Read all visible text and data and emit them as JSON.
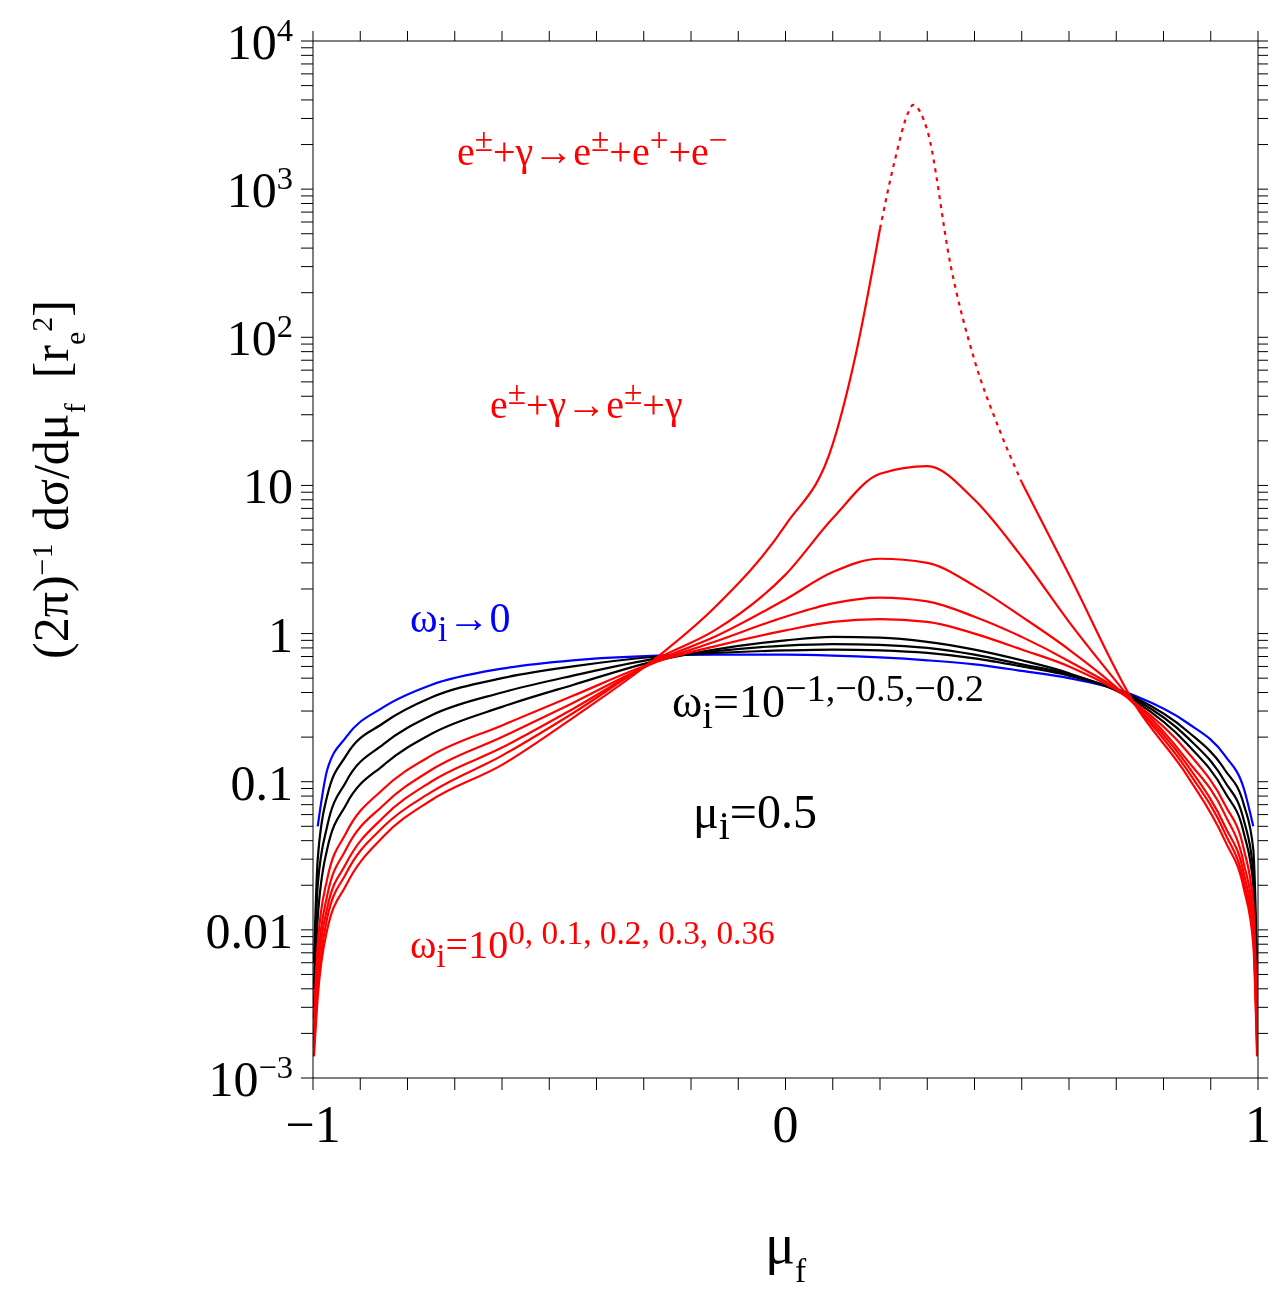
{
  "chart_data": {
    "type": "line",
    "xlabel": "μ$_{f}$",
    "ylabel": "(2π)$^{−1}$ dσ/dμ$_{f}$  [r$_{e}$$^{2}$]",
    "x": [
      -0.998,
      -0.99,
      -0.97,
      -0.93,
      -0.85,
      -0.75,
      -0.6,
      -0.45,
      -0.27,
      -0.15,
      0,
      0.1,
      0.2,
      0.3,
      0.4,
      0.5,
      0.6,
      0.74,
      0.85,
      0.93,
      0.97,
      0.99,
      0.998
    ],
    "series": [
      {
        "color": "#0000ff",
        "values": [
          null,
          0.05,
          0.12,
          0.2,
          0.32,
          0.45,
          0.58,
          0.66,
          0.71,
          0.72,
          0.72,
          0.71,
          0.69,
          0.66,
          0.62,
          0.56,
          0.5,
          0.38,
          0.25,
          0.15,
          0.09,
          0.05,
          null
        ]
      },
      {
        "color": "#000000",
        "values": [
          0.006,
          0.03,
          0.08,
          0.15,
          0.25,
          0.37,
          0.5,
          0.6,
          0.7,
          0.74,
          0.77,
          0.78,
          0.77,
          0.74,
          0.68,
          0.6,
          0.52,
          0.37,
          0.22,
          0.12,
          0.07,
          0.035,
          0.006
        ]
      },
      {
        "color": "#000000",
        "values": [
          0.004,
          0.02,
          0.05,
          0.1,
          0.18,
          0.28,
          0.4,
          0.52,
          0.68,
          0.76,
          0.83,
          0.85,
          0.84,
          0.8,
          0.72,
          0.62,
          0.53,
          0.36,
          0.2,
          0.1,
          0.055,
          0.025,
          0.004
        ]
      },
      {
        "color": "#000000",
        "values": [
          0.003,
          0.012,
          0.035,
          0.07,
          0.13,
          0.21,
          0.32,
          0.45,
          0.66,
          0.78,
          0.9,
          0.95,
          0.94,
          0.88,
          0.78,
          0.66,
          0.54,
          0.35,
          0.18,
          0.085,
          0.045,
          0.02,
          0.003
        ]
      },
      {
        "color": "#ff0000",
        "values": [
          0.0025,
          0.008,
          0.022,
          0.045,
          0.09,
          0.15,
          0.24,
          0.38,
          0.65,
          0.82,
          1.05,
          1.2,
          1.25,
          1.2,
          1.0,
          0.78,
          0.6,
          0.34,
          0.16,
          0.07,
          0.035,
          0.015,
          0.0025
        ]
      },
      {
        "color": "#ff0000",
        "values": [
          0.002,
          0.006,
          0.017,
          0.035,
          0.07,
          0.12,
          0.2,
          0.34,
          0.65,
          0.88,
          1.3,
          1.6,
          1.75,
          1.65,
          1.3,
          0.95,
          0.65,
          0.34,
          0.14,
          0.06,
          0.028,
          0.012,
          0.002
        ]
      },
      {
        "color": "#ff0000",
        "values": [
          0.0018,
          0.005,
          0.014,
          0.028,
          0.058,
          0.1,
          0.17,
          0.31,
          0.66,
          0.95,
          1.7,
          2.6,
          3.2,
          3.0,
          2.1,
          1.3,
          0.78,
          0.33,
          0.13,
          0.05,
          0.024,
          0.01,
          0.0018
        ]
      },
      {
        "color": "#ff0000",
        "values": [
          0.0016,
          0.004,
          0.012,
          0.024,
          0.05,
          0.085,
          0.15,
          0.29,
          0.68,
          1.05,
          2.5,
          6,
          12,
          13.5,
          8,
          3.3,
          1.2,
          0.33,
          0.12,
          0.045,
          0.021,
          0.009,
          0.0016
        ]
      },
      {
        "color": "#ff0000",
        "x": [
          -0.998,
          -0.99,
          -0.97,
          -0.93,
          -0.85,
          -0.75,
          -0.6,
          -0.45,
          -0.27,
          -0.15,
          0,
          0.1,
          0.15,
          0.2,
          0.35,
          0.5,
          0.6,
          0.74,
          0.85,
          0.93,
          0.97,
          0.99,
          0.998
        ],
        "values": [
          0.0014,
          0.0035,
          0.01,
          0.02,
          0.043,
          0.075,
          0.13,
          0.27,
          0.7,
          1.5,
          5.4,
          19,
          80,
          540,
          null,
          10.5,
          2.5,
          0.33,
          0.11,
          0.04,
          0.019,
          0.008,
          0.0014
        ]
      },
      {
        "color": "#ff0000",
        "line_style": "dotted",
        "x": [
          0.2,
          0.23,
          0.26,
          0.27,
          0.3,
          0.35,
          0.4,
          0.45,
          0.5
        ],
        "values": [
          540,
          1500,
          3300,
          3700,
          2500,
          300,
          70,
          25,
          10.5
        ]
      }
    ],
    "annotations": [
      "e$^{±}$+γ→e$^{±}$+e$^{+}$+e$^{−}$",
      "e$^{±}$+γ→e$^{±}$+γ",
      "ω$_{i}$→0",
      "ω$_{i}$=10$^{−1,−0.5,−0.2}$",
      "μ$_{i}$=0.5",
      "ω$_{i}$=10$^{0, 0.1, 0.2, 0.3, 0.36}$"
    ],
    "log": "y",
    "xlim": [
      -1,
      1
    ],
    "ylim": [
      0.001,
      10000
    ],
    "xticks": [
      {
        "value": -1,
        "label": "−1"
      },
      {
        "value": -0.9,
        "label": null
      },
      {
        "value": -0.8,
        "label": null
      },
      {
        "value": -0.7,
        "label": null
      },
      {
        "value": -0.6,
        "label": null
      },
      {
        "value": -0.5,
        "label": null
      },
      {
        "value": -0.4,
        "label": null
      },
      {
        "value": -0.3,
        "label": null
      },
      {
        "value": -0.2,
        "label": null
      },
      {
        "value": -0.1,
        "label": null
      },
      0,
      {
        "value": 0.1,
        "label": null
      },
      {
        "value": 0.2,
        "label": null
      },
      {
        "value": 0.3,
        "label": null
      },
      {
        "value": 0.4,
        "label": null
      },
      {
        "value": 0.5,
        "label": null
      },
      {
        "value": 0.6,
        "label": null
      },
      {
        "value": 0.7,
        "label": null
      },
      {
        "value": 0.8,
        "label": null
      },
      {
        "value": 0.9,
        "label": null
      },
      1
    ],
    "yticks": [
      {
        "value": 0.001,
        "label": "10$^{−3}$"
      },
      {
        "value": 0.002,
        "label": null
      },
      {
        "value": 0.003,
        "label": null
      },
      {
        "value": 0.004,
        "label": null
      },
      {
        "value": 0.005,
        "label": null
      },
      {
        "value": 0.006,
        "label": null
      },
      {
        "value": 0.007,
        "label": null
      },
      {
        "value": 0.008,
        "label": null
      },
      {
        "value": 0.009,
        "label": null
      },
      0.01,
      {
        "value": 0.02,
        "label": null
      },
      {
        "value": 0.03,
        "label": null
      },
      {
        "value": 0.04,
        "label": null
      },
      {
        "value": 0.05,
        "label": null
      },
      {
        "value": 0.06,
        "label": null
      },
      {
        "value": 0.07,
        "label": null
      },
      {
        "value": 0.08,
        "label": null
      },
      {
        "value": 0.09,
        "label": null
      },
      0.1,
      {
        "value": 0.2,
        "label": null
      },
      {
        "value": 0.3,
        "label": null
      },
      {
        "value": 0.4,
        "label": null
      },
      {
        "value": 0.5,
        "label": null
      },
      {
        "value": 0.6,
        "label": null
      },
      {
        "value": 0.7,
        "label": null
      },
      {
        "value": 0.8,
        "label": null
      },
      {
        "value": 0.9,
        "label": null
      },
      1,
      {
        "value": 2,
        "label": null
      },
      {
        "value": 3,
        "label": null
      },
      {
        "value": 4,
        "label": null
      },
      {
        "value": 5,
        "label": null
      },
      {
        "value": 6,
        "label": null
      },
      {
        "value": 7,
        "label": null
      },
      {
        "value": 8,
        "label": null
      },
      {
        "value": 9,
        "label": null
      },
      10,
      {
        "value": 20,
        "label": null
      },
      {
        "value": 30,
        "label": null
      },
      {
        "value": 40,
        "label": null
      },
      {
        "value": 50,
        "label": null
      },
      {
        "value": 60,
        "label": null
      },
      {
        "value": 70,
        "label": null
      },
      {
        "value": 80,
        "label": null
      },
      {
        "value": 90,
        "label": null
      },
      {
        "value": 100,
        "label": "10$^{2}$"
      },
      {
        "value": 200,
        "label": null
      },
      {
        "value": 300,
        "label": null
      },
      {
        "value": 400,
        "label": null
      },
      {
        "value": 500,
        "label": null
      },
      {
        "value": 600,
        "label": null
      },
      {
        "value": 700,
        "label": null
      },
      {
        "value": 800,
        "label": null
      },
      {
        "value": 900,
        "label": null
      },
      {
        "value": 1000,
        "label": "10$^{3}$"
      },
      {
        "value": 2000,
        "label": null
      },
      {
        "value": 3000,
        "label": null
      },
      {
        "value": 4000,
        "label": null
      },
      {
        "value": 5000,
        "label": null
      },
      {
        "value": 6000,
        "label": null
      },
      {
        "value": 7000,
        "label": null
      },
      {
        "value": 8000,
        "label": null
      },
      {
        "value": 9000,
        "label": null
      },
      {
        "value": 10000,
        "label": "10$^{4}$"
      }
    ]
  }
}
